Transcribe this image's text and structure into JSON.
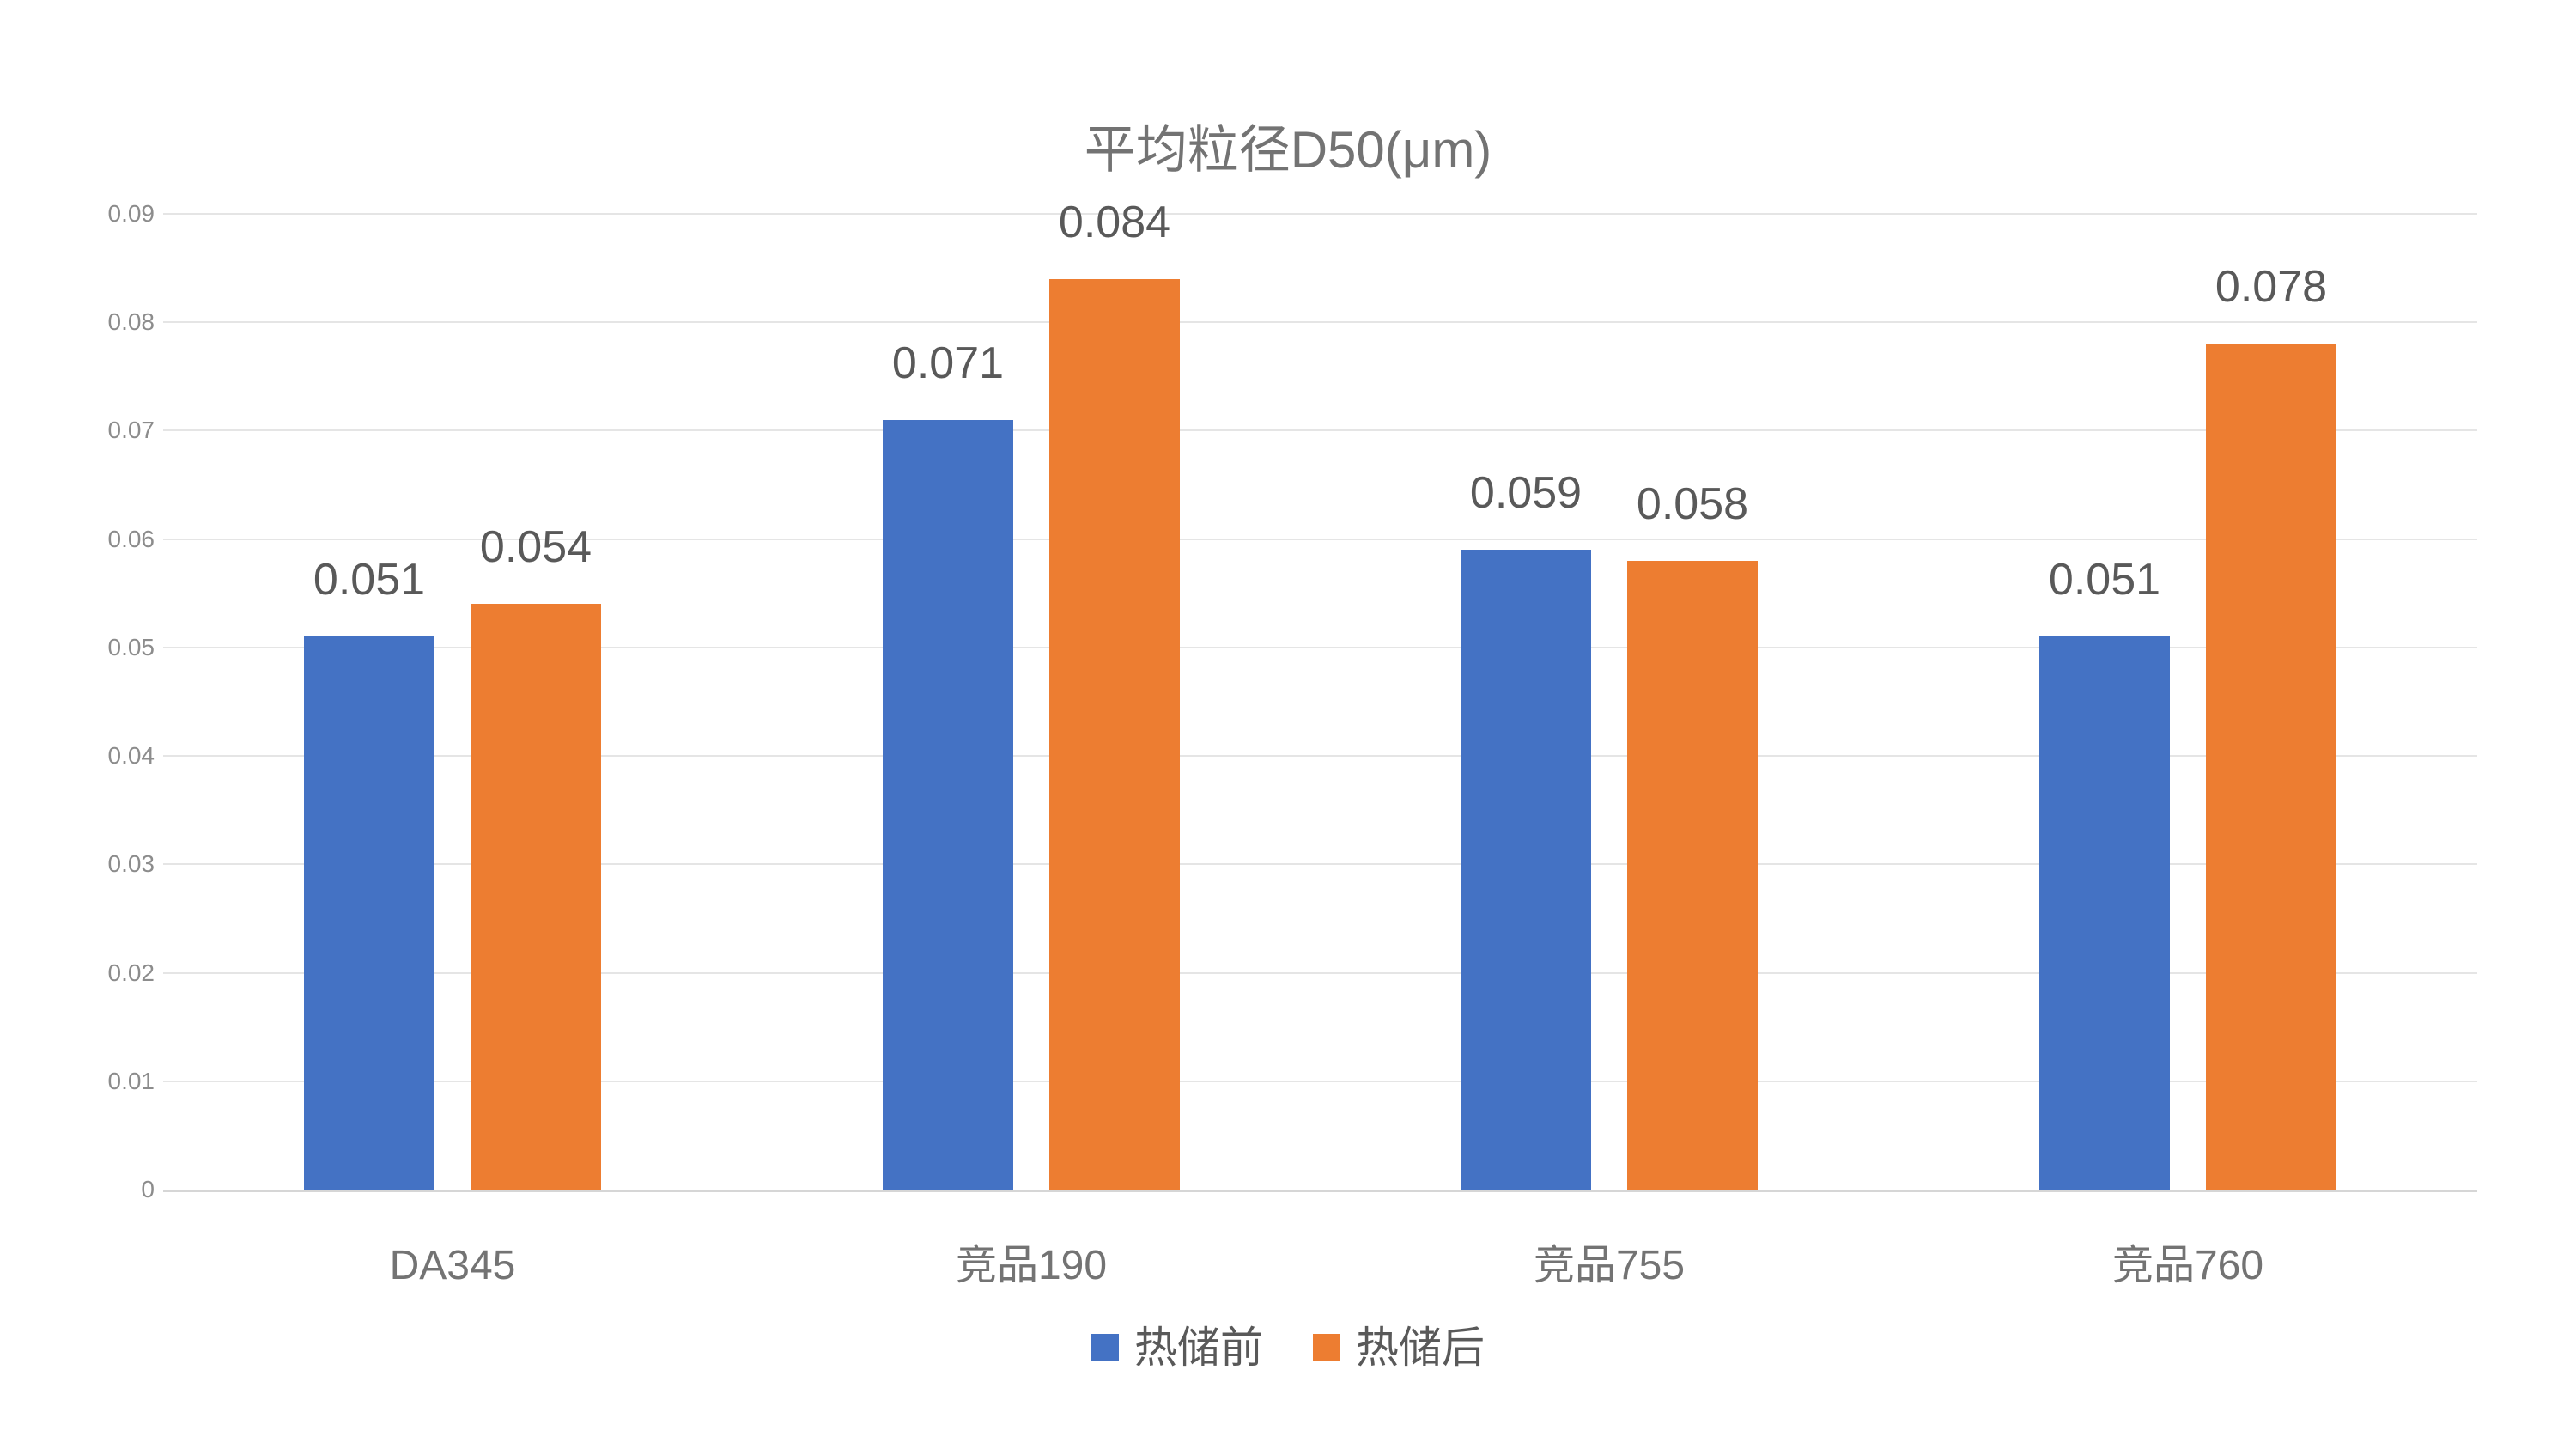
{
  "title": "平均粒径D50(μm)",
  "colors": {
    "series_before": "#4472C4",
    "series_after": "#ED7D31",
    "gridline": "#e5e5e5",
    "axis_line": "#d6d6d6",
    "title_text": "#737373",
    "axis_text": "#8c8c8c",
    "data_label_text": "#595959"
  },
  "chart_data": {
    "type": "bar",
    "title": "平均粒径D50(μm)",
    "categories": [
      "DA345",
      "竞品190",
      "竞品755",
      "竞品760"
    ],
    "series": [
      {
        "name": "热储前",
        "color": "#4472C4",
        "values": [
          0.051,
          0.071,
          0.059,
          0.051
        ],
        "labels": [
          "0.051",
          "0.071",
          "0.059",
          "0.051"
        ]
      },
      {
        "name": "热储后",
        "color": "#ED7D31",
        "values": [
          0.054,
          0.084,
          0.058,
          0.078
        ],
        "labels": [
          "0.054",
          "0.084",
          "0.058",
          "0.078"
        ]
      }
    ],
    "xlabel": "",
    "ylabel": "",
    "ylim": [
      0,
      0.09
    ],
    "ytick_step": 0.01,
    "ytick_labels": [
      "0",
      "0.01",
      "0.02",
      "0.03",
      "0.04",
      "0.05",
      "0.06",
      "0.07",
      "0.08",
      "0.09"
    ],
    "grid": true,
    "data_labels_shown": true,
    "legend_position": "bottom"
  }
}
